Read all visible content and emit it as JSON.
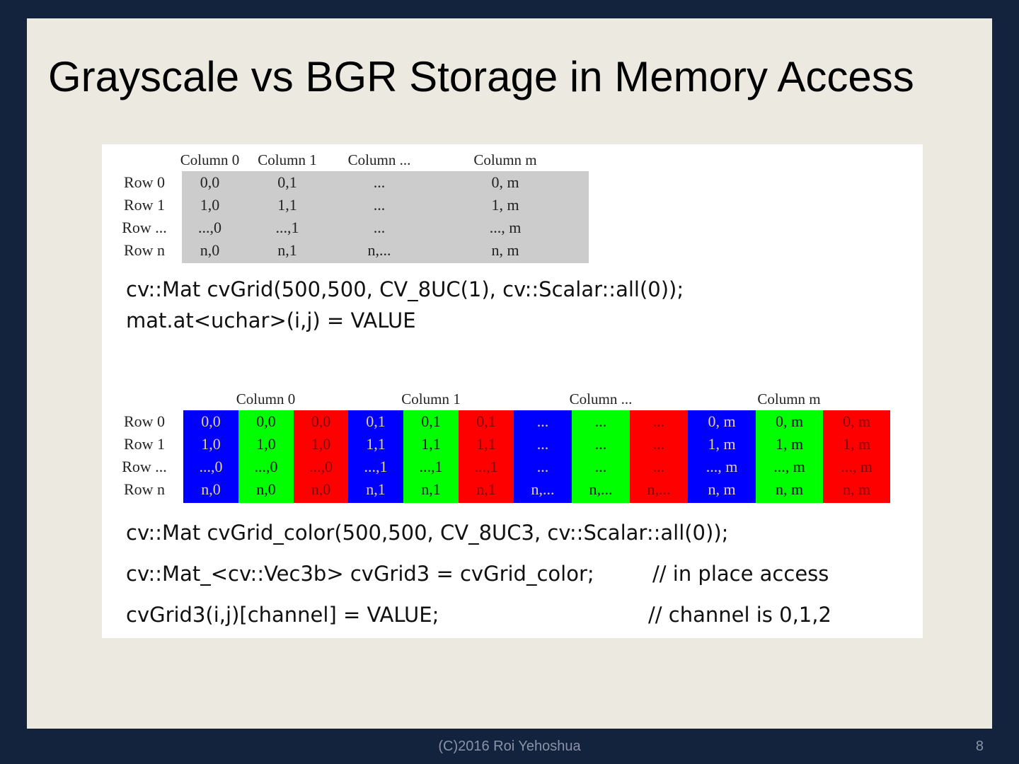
{
  "title": "Grayscale vs BGR Storage in Memory Access",
  "gray_table": {
    "columns": [
      "Column 0",
      "Column 1",
      "Column ...",
      "Column m"
    ],
    "rows": [
      "Row 0",
      "Row 1",
      "Row ...",
      "Row n"
    ],
    "cells": [
      [
        "0,0",
        "0,1",
        "...",
        "0, m"
      ],
      [
        "1,0",
        "1,1",
        "...",
        "1, m"
      ],
      [
        "...,0",
        "...,1",
        "...",
        "..., m"
      ],
      [
        "n,0",
        "n,1",
        "n,...",
        "n, m"
      ]
    ],
    "cell_bg": "#cccccc"
  },
  "gray_code": [
    "cv::Mat cvGrid(500,500, CV_8UC(1),  cv::Scalar::all(0));",
    "mat.at<uchar>(i,j)  = VALUE"
  ],
  "color_table": {
    "columns": [
      "Column 0",
      "Column 1",
      "Column ...",
      "Column m"
    ],
    "rows": [
      "Row 0",
      "Row 1",
      "Row ...",
      "Row n"
    ],
    "channel_colors": [
      "#0000ff",
      "#00ff00",
      "#ff0000"
    ],
    "channel_text_colors": [
      "#e6d38a",
      "#111111",
      "#7a0000"
    ],
    "cells": [
      [
        "0,0",
        "0,1",
        "...",
        "0, m"
      ],
      [
        "1,0",
        "1,1",
        "...",
        "1, m"
      ],
      [
        "...,0",
        "...,1",
        "...",
        "..., m"
      ],
      [
        "n,0",
        "n,1",
        "n,...",
        "n, m"
      ]
    ]
  },
  "color_code": [
    "cv::Mat cvGrid_color(500,500, CV_8UC3, cv::Scalar::all(0));",
    "cv::Mat_<cv::Vec3b> cvGrid3 = cvGrid_color;",
    "cvGrid3(i,j)[channel]  =  VALUE;"
  ],
  "color_comments": [
    "// in place access",
    "// channel is 0,1,2"
  ],
  "footer": "(C)2016 Roi Yehoshua",
  "page_number": "8"
}
